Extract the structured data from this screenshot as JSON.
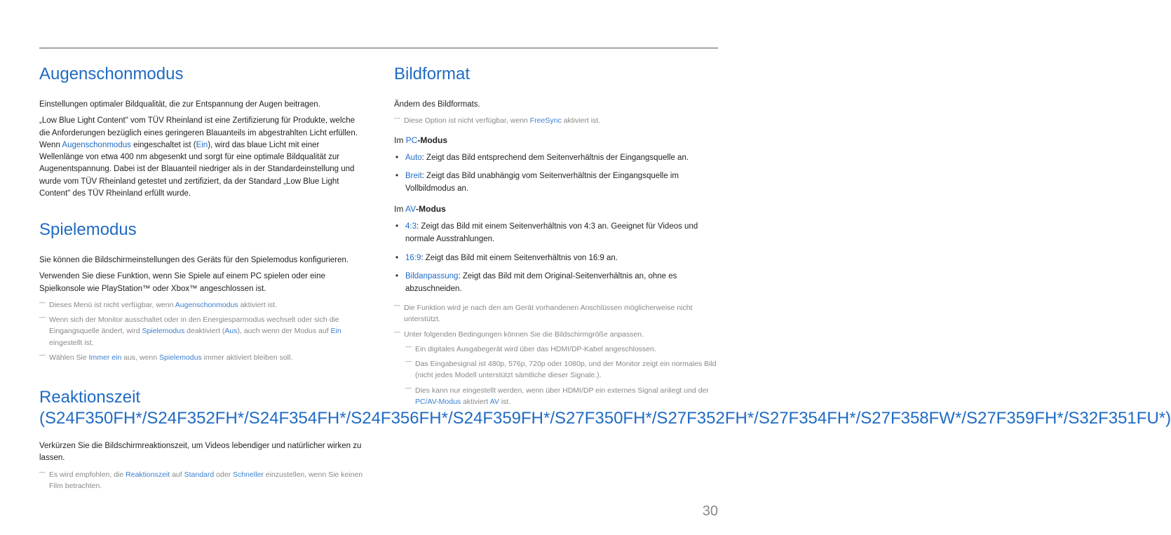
{
  "page_number": "30",
  "left": {
    "sec1": {
      "title": "Augenschonmodus",
      "p1": "Einstellungen optimaler Bildqualität, die zur Entspannung der Augen beitragen.",
      "p2_pre": "„Low Blue Light Content\" vom TÜV Rheinland ist eine Zertifizierung für Produkte, welche die Anforderungen bezüglich eines geringeren Blauanteils im abgestrahlten Licht erfüllen. Wenn ",
      "p2_k1": "Augenschonmodus",
      "p2_mid1": " eingeschaltet ist (",
      "p2_k2": "Ein",
      "p2_post": "), wird das blaue Licht mit einer Wellenlänge von etwa 400 nm abgesenkt und sorgt für eine optimale Bildqualität zur Augenentspannung. Dabei ist der Blauanteil niedriger als in der Standardeinstellung und wurde vom TÜV Rheinland getestet und zertifiziert, da der Standard „Low Blue Light Content\" des TÜV Rheinland erfüllt wurde."
    },
    "sec2": {
      "title": "Spielemodus",
      "p1": "Sie können die Bildschirmeinstellungen des Geräts für den Spielemodus konfigurieren.",
      "p2": "Verwenden Sie diese Funktion, wenn Sie Spiele auf einem PC spielen oder eine Spielkonsole wie PlayStation™ oder Xbox™ angeschlossen ist.",
      "n1_pre": "Dieses Menü ist nicht verfügbar, wenn ",
      "n1_k": "Augenschonmodus",
      "n1_post": " aktiviert ist.",
      "n2_pre": "Wenn sich der Monitor ausschaltet oder in den Energiesparmodus wechselt oder sich die Eingangsquelle ändert, wird ",
      "n2_k1": "Spielemodus",
      "n2_mid1": " deaktiviert (",
      "n2_k2": "Aus",
      "n2_mid2": "), auch wenn der Modus auf ",
      "n2_k3": "Ein",
      "n2_post": " eingestellt ist.",
      "n3_pre": "Wählen Sie ",
      "n3_k1": "Immer ein",
      "n3_mid": " aus, wenn ",
      "n3_k2": "Spielemodus",
      "n3_post": " immer aktiviert bleiben soll."
    },
    "sec3": {
      "title": "Reaktionszeit (S24F350FH*/S24F352FH*/S24F354FH*/S24F356FH*/S24F359FH*/S27F350FH*/S27F352FH*/S27F354FH*/S27F358FW*/S27F359FH*/S32F351FU*)",
      "p1": "Verkürzen Sie die Bildschirmreaktionszeit, um Videos lebendiger und natürlicher wirken zu lassen.",
      "n1_pre": "Es wird empfohlen, die ",
      "n1_k1": "Reaktionszeit",
      "n1_mid1": " auf ",
      "n1_k2": "Standard",
      "n1_mid2": " oder ",
      "n1_k3": "Schneller",
      "n1_post": " einzustellen, wenn Sie keinen Film betrachten."
    }
  },
  "right": {
    "title": "Bildformat",
    "p1": "Ändern des Bildformats.",
    "n1_pre": "Diese Option ist nicht verfügbar, wenn ",
    "n1_k": "FreeSync",
    "n1_post": " aktiviert ist.",
    "h_pc_pre": "Im ",
    "h_pc_k": "PC",
    "h_pc_post": "-Modus",
    "pc_items": [
      {
        "term": "Auto",
        "text": ": Zeigt das Bild entsprechend dem Seitenverhältnis der Eingangsquelle an."
      },
      {
        "term": "Breit",
        "text": ": Zeigt das Bild unabhängig vom Seitenverhältnis der Eingangsquelle im Vollbildmodus an."
      }
    ],
    "h_av_pre": "Im ",
    "h_av_k": "AV",
    "h_av_post": "-Modus",
    "av_items": [
      {
        "term": "4:3",
        "text": ": Zeigt das Bild mit einem Seitenverhältnis von 4:3 an. Geeignet für Videos und normale Ausstrahlungen."
      },
      {
        "term": "16:9",
        "text": ": Zeigt das Bild mit einem Seitenverhältnis von 16:9 an."
      },
      {
        "term": "Bildanpassung",
        "text": ": Zeigt das Bild mit dem Original-Seitenverhältnis an, ohne es abzuschneiden."
      }
    ],
    "n2": "Die Funktion wird je nach den am Gerät vorhandenen Anschlüssen möglicherweise nicht unterstützt.",
    "n3": "Unter folgenden Bedingungen können Sie die Bildschirmgröße anpassen.",
    "n3a": "Ein digitales Ausgabegerät wird über das HDMI/DP-Kabel angeschlossen.",
    "n3b": "Das Eingabesignal ist 480p, 576p, 720p oder 1080p, und der Monitor zeigt ein normales Bild (nicht jedes Modell unterstützt sämtliche dieser Signale.).",
    "n3c_pre": "Dies kann nur eingestellt werden, wenn über HDMI/DP ein externes Signal anliegt und der ",
    "n3c_k1": "PC/AV-Modus",
    "n3c_mid": " aktiviert ",
    "n3c_k2": "AV",
    "n3c_post": " ist."
  }
}
